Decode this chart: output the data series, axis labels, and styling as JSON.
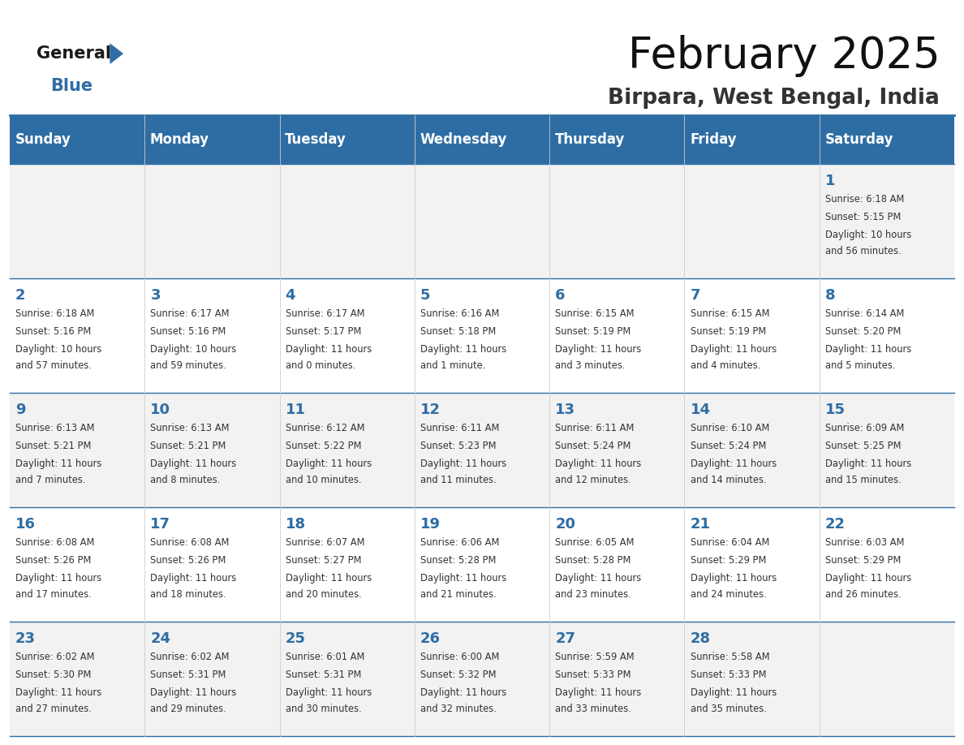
{
  "title": "February 2025",
  "subtitle": "Birpara, West Bengal, India",
  "header_bg": "#2e6da4",
  "header_text": "#ffffff",
  "days_of_week": [
    "Sunday",
    "Monday",
    "Tuesday",
    "Wednesday",
    "Thursday",
    "Friday",
    "Saturday"
  ],
  "cell_bg_even": "#f2f2f2",
  "cell_bg_odd": "#ffffff",
  "border_color": "#2e6da4",
  "text_color": "#333333",
  "day_num_color": "#2e6da4",
  "calendar": [
    [
      null,
      null,
      null,
      null,
      null,
      null,
      1
    ],
    [
      2,
      3,
      4,
      5,
      6,
      7,
      8
    ],
    [
      9,
      10,
      11,
      12,
      13,
      14,
      15
    ],
    [
      16,
      17,
      18,
      19,
      20,
      21,
      22
    ],
    [
      23,
      24,
      25,
      26,
      27,
      28,
      null
    ]
  ],
  "sunrise": {
    "1": "6:18 AM",
    "2": "6:18 AM",
    "3": "6:17 AM",
    "4": "6:17 AM",
    "5": "6:16 AM",
    "6": "6:15 AM",
    "7": "6:15 AM",
    "8": "6:14 AM",
    "9": "6:13 AM",
    "10": "6:13 AM",
    "11": "6:12 AM",
    "12": "6:11 AM",
    "13": "6:11 AM",
    "14": "6:10 AM",
    "15": "6:09 AM",
    "16": "6:08 AM",
    "17": "6:08 AM",
    "18": "6:07 AM",
    "19": "6:06 AM",
    "20": "6:05 AM",
    "21": "6:04 AM",
    "22": "6:03 AM",
    "23": "6:02 AM",
    "24": "6:02 AM",
    "25": "6:01 AM",
    "26": "6:00 AM",
    "27": "5:59 AM",
    "28": "5:58 AM"
  },
  "sunset": {
    "1": "5:15 PM",
    "2": "5:16 PM",
    "3": "5:16 PM",
    "4": "5:17 PM",
    "5": "5:18 PM",
    "6": "5:19 PM",
    "7": "5:19 PM",
    "8": "5:20 PM",
    "9": "5:21 PM",
    "10": "5:21 PM",
    "11": "5:22 PM",
    "12": "5:23 PM",
    "13": "5:24 PM",
    "14": "5:24 PM",
    "15": "5:25 PM",
    "16": "5:26 PM",
    "17": "5:26 PM",
    "18": "5:27 PM",
    "19": "5:28 PM",
    "20": "5:28 PM",
    "21": "5:29 PM",
    "22": "5:29 PM",
    "23": "5:30 PM",
    "24": "5:31 PM",
    "25": "5:31 PM",
    "26": "5:32 PM",
    "27": "5:33 PM",
    "28": "5:33 PM"
  },
  "daylight": {
    "1": [
      "10 hours",
      "and 56 minutes."
    ],
    "2": [
      "10 hours",
      "and 57 minutes."
    ],
    "3": [
      "10 hours",
      "and 59 minutes."
    ],
    "4": [
      "11 hours",
      "and 0 minutes."
    ],
    "5": [
      "11 hours",
      "and 1 minute."
    ],
    "6": [
      "11 hours",
      "and 3 minutes."
    ],
    "7": [
      "11 hours",
      "and 4 minutes."
    ],
    "8": [
      "11 hours",
      "and 5 minutes."
    ],
    "9": [
      "11 hours",
      "and 7 minutes."
    ],
    "10": [
      "11 hours",
      "and 8 minutes."
    ],
    "11": [
      "11 hours",
      "and 10 minutes."
    ],
    "12": [
      "11 hours",
      "and 11 minutes."
    ],
    "13": [
      "11 hours",
      "and 12 minutes."
    ],
    "14": [
      "11 hours",
      "and 14 minutes."
    ],
    "15": [
      "11 hours",
      "and 15 minutes."
    ],
    "16": [
      "11 hours",
      "and 17 minutes."
    ],
    "17": [
      "11 hours",
      "and 18 minutes."
    ],
    "18": [
      "11 hours",
      "and 20 minutes."
    ],
    "19": [
      "11 hours",
      "and 21 minutes."
    ],
    "20": [
      "11 hours",
      "and 23 minutes."
    ],
    "21": [
      "11 hours",
      "and 24 minutes."
    ],
    "22": [
      "11 hours",
      "and 26 minutes."
    ],
    "23": [
      "11 hours",
      "and 27 minutes."
    ],
    "24": [
      "11 hours",
      "and 29 minutes."
    ],
    "25": [
      "11 hours",
      "and 30 minutes."
    ],
    "26": [
      "11 hours",
      "and 32 minutes."
    ],
    "27": [
      "11 hours",
      "and 33 minutes."
    ],
    "28": [
      "11 hours",
      "and 35 minutes."
    ]
  },
  "logo_general_color": "#1a1a1a",
  "logo_blue_color": "#2e6da4",
  "logo_triangle_color": "#2e6da4"
}
